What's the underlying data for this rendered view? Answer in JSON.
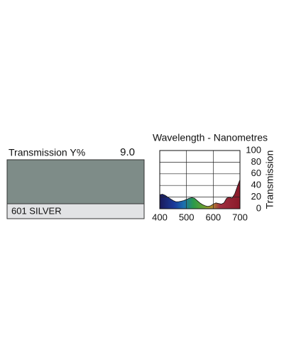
{
  "swatch": {
    "label": "Transmission Y%",
    "transmission": "9.0",
    "name": "601 SILVER",
    "color": "#7e8c88"
  },
  "chart_data": {
    "type": "area",
    "title": "Wavelength - Nanometres",
    "y_label": "Transmission",
    "x": [
      400,
      410,
      420,
      430,
      440,
      450,
      460,
      470,
      480,
      490,
      500,
      510,
      520,
      530,
      540,
      550,
      560,
      570,
      580,
      590,
      600,
      610,
      620,
      630,
      640,
      650,
      660,
      670,
      680,
      690,
      700
    ],
    "values": [
      24,
      25,
      23,
      20,
      17,
      14,
      12,
      12,
      13,
      14,
      16,
      18,
      19,
      18,
      14,
      10,
      7,
      5,
      4,
      5,
      8,
      10,
      9,
      8,
      10,
      18,
      20,
      18,
      25,
      38,
      50
    ],
    "xlim": [
      400,
      700
    ],
    "xticks": [
      400,
      500,
      600,
      700
    ],
    "ylim": [
      0,
      100
    ],
    "yticks": [
      0,
      20,
      40,
      60,
      80,
      100
    ],
    "grid": true
  }
}
